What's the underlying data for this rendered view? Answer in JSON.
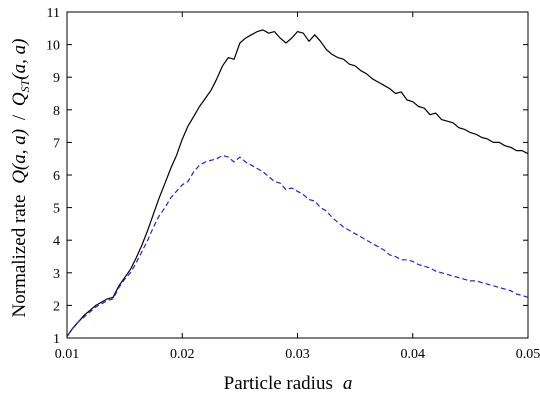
{
  "chart_data": {
    "type": "line",
    "xlabel": {
      "text": "Particle radius",
      "symbol": "a"
    },
    "ylabel": {
      "prefix": "Normalized rate",
      "numerator": "Q(a, a)",
      "divider": "/",
      "denominator_symbol": "Q",
      "denominator_sub": "ST",
      "denominator_args": "(a, a)"
    },
    "xlim": [
      0.01,
      0.05
    ],
    "ylim": [
      1,
      11
    ],
    "xticks": [
      0.01,
      0.02,
      0.03,
      0.04,
      0.05
    ],
    "xtick_labels": [
      "0.01",
      "0.02",
      "0.03",
      "0.04",
      "0.05"
    ],
    "yticks": [
      1,
      2,
      3,
      4,
      5,
      6,
      7,
      8,
      9,
      10,
      11
    ],
    "ytick_labels": [
      "1",
      "2",
      "3",
      "4",
      "5",
      "6",
      "7",
      "8",
      "9",
      "10",
      "11"
    ],
    "grid": false,
    "series": [
      {
        "color": "#000000",
        "style": "solid",
        "x": [
          0.01,
          0.0105,
          0.011,
          0.0115,
          0.012,
          0.0125,
          0.013,
          0.0135,
          0.014,
          0.0145,
          0.015,
          0.0155,
          0.016,
          0.0165,
          0.017,
          0.0175,
          0.018,
          0.0185,
          0.019,
          0.0195,
          0.02,
          0.0205,
          0.021,
          0.0215,
          0.022,
          0.0225,
          0.023,
          0.0235,
          0.024,
          0.0245,
          0.025,
          0.0255,
          0.026,
          0.0265,
          0.027,
          0.0275,
          0.028,
          0.0285,
          0.029,
          0.0295,
          0.03,
          0.0305,
          0.031,
          0.0315,
          0.032,
          0.0325,
          0.033,
          0.0335,
          0.034,
          0.0345,
          0.035,
          0.0355,
          0.036,
          0.0365,
          0.037,
          0.0375,
          0.038,
          0.0385,
          0.039,
          0.0395,
          0.04,
          0.0405,
          0.041,
          0.0415,
          0.042,
          0.0425,
          0.043,
          0.0435,
          0.044,
          0.0445,
          0.045,
          0.0455,
          0.046,
          0.0465,
          0.047,
          0.0475,
          0.048,
          0.0485,
          0.049,
          0.0495,
          0.05
        ],
        "y": [
          1.05,
          1.3,
          1.5,
          1.7,
          1.85,
          2.0,
          2.1,
          2.2,
          2.25,
          2.6,
          2.85,
          3.1,
          3.45,
          3.85,
          4.3,
          4.8,
          5.3,
          5.75,
          6.2,
          6.6,
          7.1,
          7.5,
          7.8,
          8.1,
          8.35,
          8.6,
          8.95,
          9.35,
          9.6,
          9.55,
          10.05,
          10.2,
          10.3,
          10.4,
          10.45,
          10.35,
          10.4,
          10.2,
          10.05,
          10.2,
          10.4,
          10.35,
          10.1,
          10.3,
          10.1,
          9.85,
          9.7,
          9.6,
          9.55,
          9.4,
          9.35,
          9.2,
          9.1,
          8.95,
          8.85,
          8.75,
          8.65,
          8.5,
          8.55,
          8.3,
          8.25,
          8.1,
          8.05,
          7.85,
          7.9,
          7.7,
          7.65,
          7.6,
          7.45,
          7.4,
          7.3,
          7.25,
          7.15,
          7.1,
          7.0,
          7.0,
          6.9,
          6.85,
          6.75,
          6.75,
          6.65
        ]
      },
      {
        "color": "#2222dd",
        "style": "dashed",
        "x": [
          0.01,
          0.0105,
          0.011,
          0.0115,
          0.012,
          0.0125,
          0.013,
          0.0135,
          0.014,
          0.0145,
          0.015,
          0.0155,
          0.016,
          0.0165,
          0.017,
          0.0175,
          0.018,
          0.0185,
          0.019,
          0.0195,
          0.02,
          0.0205,
          0.021,
          0.0215,
          0.022,
          0.0225,
          0.023,
          0.0235,
          0.024,
          0.0245,
          0.025,
          0.0255,
          0.026,
          0.0265,
          0.027,
          0.0275,
          0.028,
          0.0285,
          0.029,
          0.0295,
          0.03,
          0.0305,
          0.031,
          0.0315,
          0.032,
          0.0325,
          0.033,
          0.0335,
          0.034,
          0.0345,
          0.035,
          0.0355,
          0.036,
          0.0365,
          0.037,
          0.0375,
          0.038,
          0.0385,
          0.039,
          0.0395,
          0.04,
          0.0405,
          0.041,
          0.0415,
          0.042,
          0.0425,
          0.043,
          0.0435,
          0.044,
          0.0445,
          0.045,
          0.0455,
          0.046,
          0.0465,
          0.047,
          0.0475,
          0.048,
          0.0485,
          0.049,
          0.0495,
          0.05
        ],
        "y": [
          1.05,
          1.3,
          1.5,
          1.65,
          1.8,
          1.95,
          2.05,
          2.15,
          2.2,
          2.55,
          2.8,
          3.0,
          3.3,
          3.65,
          4.0,
          4.4,
          4.75,
          5.0,
          5.3,
          5.5,
          5.7,
          5.8,
          6.1,
          6.3,
          6.4,
          6.45,
          6.5,
          6.6,
          6.55,
          6.4,
          6.55,
          6.4,
          6.3,
          6.2,
          6.1,
          5.95,
          5.8,
          5.75,
          5.55,
          5.6,
          5.5,
          5.4,
          5.25,
          5.2,
          5.0,
          4.9,
          4.7,
          4.55,
          4.4,
          4.3,
          4.2,
          4.1,
          4.0,
          3.9,
          3.8,
          3.7,
          3.55,
          3.5,
          3.4,
          3.4,
          3.35,
          3.25,
          3.2,
          3.15,
          3.05,
          3.0,
          2.95,
          2.9,
          2.85,
          2.8,
          2.75,
          2.75,
          2.7,
          2.65,
          2.6,
          2.55,
          2.5,
          2.45,
          2.35,
          2.3,
          2.25
        ]
      }
    ]
  }
}
